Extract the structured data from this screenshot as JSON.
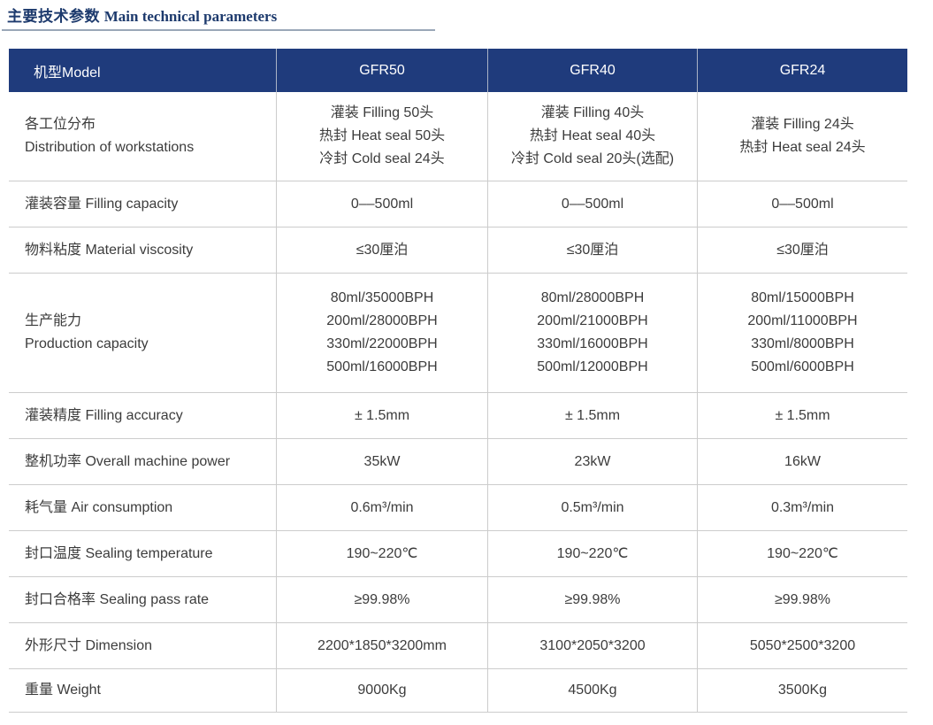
{
  "page": {
    "title_zh": "主要技术参数",
    "title_en": "Main technical parameters"
  },
  "colors": {
    "header_bg": "#1f3b7c",
    "title_text": "#1d3a6d",
    "title_underline": "#9aa7b8",
    "grid_border": "#cccccc",
    "body_text": "#3c3c3c",
    "header_text": "#ffffff"
  },
  "table": {
    "header": {
      "model_label": "机型Model",
      "models": [
        "GFR50",
        "GFR40",
        "GFR24"
      ]
    },
    "rows": [
      {
        "param": "各工位分布\nDistribution of workstations",
        "values": [
          "灌装 Filling 50头\n热封 Heat seal 50头\n冷封 Cold seal 24头",
          "灌装 Filling 40头\n热封 Heat seal 40头\n冷封 Cold seal 20头(选配)",
          "灌装 Filling 24头\n热封 Heat seal 24头"
        ]
      },
      {
        "param": "灌装容量 Filling capacity",
        "values": [
          "0––500ml",
          "0––500ml",
          "0––500ml"
        ]
      },
      {
        "param": "物料粘度 Material viscosity",
        "values": [
          "≤30厘泊",
          "≤30厘泊",
          "≤30厘泊"
        ]
      },
      {
        "param": "生产能力\nProduction capacity",
        "values": [
          "80ml/35000BPH\n200ml/28000BPH\n330ml/22000BPH\n500ml/16000BPH",
          "80ml/28000BPH\n200ml/21000BPH\n330ml/16000BPH\n500ml/12000BPH",
          "80ml/15000BPH\n200ml/11000BPH\n330ml/8000BPH\n500ml/6000BPH"
        ]
      },
      {
        "param": "灌装精度 Filling accuracy",
        "values": [
          "± 1.5mm",
          "± 1.5mm",
          "± 1.5mm"
        ]
      },
      {
        "param": "整机功率 Overall machine power",
        "values": [
          "35kW",
          "23kW",
          "16kW"
        ]
      },
      {
        "param": "耗气量 Air consumption",
        "values": [
          "0.6m³/min",
          "0.5m³/min",
          "0.3m³/min"
        ]
      },
      {
        "param": "封口温度 Sealing temperature",
        "values": [
          "190~220℃",
          "190~220℃",
          "190~220℃"
        ]
      },
      {
        "param": "封口合格率 Sealing pass rate",
        "values": [
          "≥99.98%",
          "≥99.98%",
          "≥99.98%"
        ]
      },
      {
        "param": "外形尺寸 Dimension",
        "values": [
          "2200*1850*3200mm",
          "3100*2050*3200",
          "5050*2500*3200"
        ]
      },
      {
        "param": "重量 Weight",
        "values": [
          "9000Kg",
          "4500Kg",
          "3500Kg"
        ]
      }
    ]
  }
}
